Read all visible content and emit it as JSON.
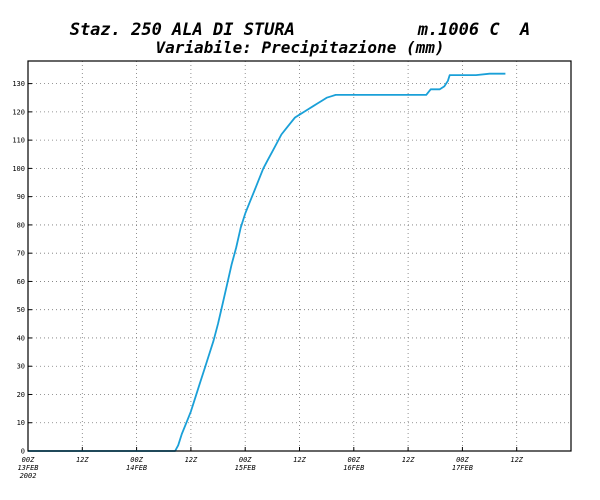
{
  "header": {
    "line1": "Staz. 250 ALA DI STURA            m.1006 C  A",
    "line2": "Variabile: Precipitazione (mm)"
  },
  "chart_data": {
    "type": "line",
    "title": "Staz. 250 ALA DI STURA m.1006 C A",
    "subtitle": "Variabile: Precipitazione (mm)",
    "xlabel": "",
    "ylabel": "",
    "x_unit": "hours from 00Z 13FEB 2002",
    "xlim": [
      0,
      120
    ],
    "ylim": [
      0,
      138
    ],
    "grid": true,
    "line_color": "#1aa0d8",
    "y_ticks": [
      0,
      10,
      20,
      30,
      40,
      50,
      60,
      70,
      80,
      90,
      100,
      110,
      120,
      130
    ],
    "x_ticks": [
      {
        "x": 0,
        "label": "00Z",
        "sub": "13FEB",
        "sub2": "2002"
      },
      {
        "x": 12,
        "label": "12Z",
        "sub": "",
        "sub2": ""
      },
      {
        "x": 24,
        "label": "00Z",
        "sub": "14FEB",
        "sub2": ""
      },
      {
        "x": 36,
        "label": "12Z",
        "sub": "",
        "sub2": ""
      },
      {
        "x": 48,
        "label": "00Z",
        "sub": "15FEB",
        "sub2": ""
      },
      {
        "x": 60,
        "label": "12Z",
        "sub": "",
        "sub2": ""
      },
      {
        "x": 72,
        "label": "00Z",
        "sub": "16FEB",
        "sub2": ""
      },
      {
        "x": 84,
        "label": "12Z",
        "sub": "",
        "sub2": ""
      },
      {
        "x": 96,
        "label": "00Z",
        "sub": "17FEB",
        "sub2": ""
      },
      {
        "x": 108,
        "label": "12Z",
        "sub": "",
        "sub2": ""
      }
    ],
    "series": [
      {
        "name": "",
        "x": [
          0,
          12,
          24,
          32.5,
          33.2,
          34,
          35,
          36,
          37,
          38,
          39,
          40,
          41,
          42,
          43,
          44,
          45,
          46,
          47,
          48,
          49,
          50,
          51,
          52,
          53,
          54,
          55,
          56,
          57,
          58,
          59,
          60,
          61,
          62,
          63,
          64,
          65,
          66,
          67,
          68,
          69,
          70,
          71,
          72,
          73,
          74,
          76,
          78,
          80,
          82,
          84,
          86,
          88,
          89,
          90,
          91,
          92,
          92.8,
          93.2,
          96,
          99,
          102,
          105.5
        ],
        "y": [
          0,
          0,
          0,
          0,
          2,
          6,
          10,
          14,
          19,
          24,
          29,
          34,
          39,
          45,
          52,
          59,
          66,
          72,
          79,
          84,
          88,
          92,
          96,
          100,
          103,
          106,
          109,
          112,
          114,
          116,
          118,
          119,
          120,
          121,
          122,
          123,
          124,
          125,
          125.5,
          126,
          126,
          126,
          126,
          126,
          126,
          126,
          126,
          126,
          126,
          126,
          126,
          126,
          126,
          128,
          128,
          128,
          129,
          131,
          133,
          133,
          133,
          133.5,
          133.5
        ]
      }
    ]
  }
}
